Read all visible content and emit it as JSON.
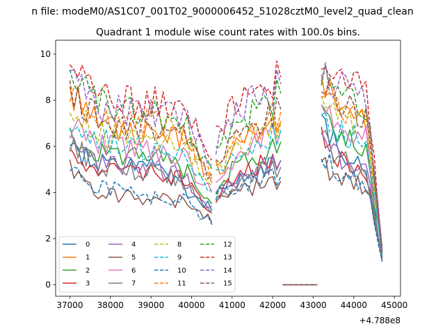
{
  "header": {
    "suptitle": "n file: modeM0/AS1C07_001T02_9000006452_51028cztM0_level2_quad_clean",
    "title": "Quadrant 1 module wise count rates with 100.0s bins.",
    "offset_label": "+4.788e8"
  },
  "chart_data": {
    "type": "line",
    "title": "Quadrant 1 module wise count rates with 100.0s bins.",
    "xlabel": "",
    "ylabel": "",
    "x_offset": 478800000,
    "xlim": [
      36650,
      45150
    ],
    "ylim": [
      -0.5,
      10.6
    ],
    "xticks": [
      37000,
      38000,
      39000,
      40000,
      41000,
      42000,
      43000,
      44000,
      45000
    ],
    "yticks": [
      0,
      2,
      4,
      6,
      8,
      10
    ],
    "grid": false,
    "legend": {
      "placement": "lower-left",
      "columns": 4
    },
    "x_ranges": [
      [
        37000,
        40500,
        100
      ],
      [
        40600,
        42200,
        100
      ],
      [
        42250,
        43100,
        50
      ],
      [
        43200,
        44700,
        100
      ]
    ],
    "series": [
      {
        "name": "0",
        "color": "#1f77b4",
        "dash": "solid",
        "segs": [
          [
            5.9,
            5.4,
            5.2,
            5.2,
            4.3,
            3.2
          ],
          [
            3.8,
            4.6,
            5.0,
            5.4
          ],
          [
            0,
            0
          ],
          [
            7.1,
            6.0,
            5.4,
            4.7,
            1.2
          ]
        ]
      },
      {
        "name": "1",
        "color": "#ff7f0e",
        "dash": "solid",
        "segs": [
          [
            8.3,
            7.4,
            6.6,
            6.7,
            6.4,
            4.4
          ],
          [
            5.0,
            5.9,
            6.6,
            7.1
          ],
          [
            0,
            0
          ],
          [
            8.8,
            7.8,
            7.4,
            7.0,
            1.3
          ]
        ]
      },
      {
        "name": "2",
        "color": "#2ca02c",
        "dash": "solid",
        "segs": [
          [
            6.5,
            5.8,
            5.5,
            5.7,
            5.0,
            3.5
          ],
          [
            4.2,
            5.2,
            5.6,
            6.2
          ],
          [
            0,
            0
          ],
          [
            7.6,
            6.6,
            6.2,
            5.8,
            1.3
          ]
        ]
      },
      {
        "name": "3",
        "color": "#d62728",
        "dash": "solid",
        "segs": [
          [
            5.6,
            5.1,
            4.9,
            4.8,
            4.5,
            3.1
          ],
          [
            3.6,
            4.8,
            5.2,
            5.4
          ],
          [
            0,
            0
          ],
          [
            6.7,
            5.6,
            5.1,
            4.7,
            1.1
          ]
        ]
      },
      {
        "name": "4",
        "color": "#9467bd",
        "dash": "solid",
        "segs": [
          [
            6.0,
            5.3,
            5.2,
            5.1,
            4.6,
            3.4
          ],
          [
            3.9,
            4.6,
            5.0,
            5.4
          ],
          [
            0,
            0
          ],
          [
            6.5,
            5.6,
            5.2,
            4.9,
            1.2
          ]
        ]
      },
      {
        "name": "5",
        "color": "#8c564b",
        "dash": "solid",
        "segs": [
          [
            5.0,
            4.0,
            3.8,
            3.7,
            3.6,
            2.7
          ],
          [
            3.5,
            4.0,
            4.2,
            4.5
          ],
          [
            0,
            0
          ],
          [
            5.3,
            4.6,
            4.4,
            4.2,
            1.0
          ]
        ]
      },
      {
        "name": "6",
        "color": "#e377c2",
        "dash": "solid",
        "segs": [
          [
            6.9,
            6.1,
            5.9,
            5.8,
            5.5,
            4.0
          ],
          [
            4.7,
            5.7,
            6.2,
            6.7
          ],
          [
            0,
            0
          ],
          [
            7.8,
            6.9,
            6.6,
            6.4,
            1.4
          ]
        ]
      },
      {
        "name": "7",
        "color": "#7f7f7f",
        "dash": "solid",
        "segs": [
          [
            6.2,
            5.1,
            5.0,
            4.9,
            4.4,
            3.1
          ],
          [
            3.7,
            4.5,
            4.8,
            5.1
          ],
          [
            0,
            0
          ],
          [
            6.6,
            5.6,
            5.1,
            4.8,
            1.1
          ]
        ]
      },
      {
        "name": "8",
        "color": "#bcbd22",
        "dash": "dashed",
        "segs": [
          [
            7.9,
            6.6,
            6.3,
            6.2,
            6.0,
            4.3
          ],
          [
            5.0,
            6.0,
            6.4,
            7.0
          ],
          [
            0,
            0
          ],
          [
            8.3,
            7.4,
            7.1,
            6.9,
            1.4
          ]
        ]
      },
      {
        "name": "9",
        "color": "#17becf",
        "dash": "dashed",
        "segs": [
          [
            7.0,
            6.3,
            6.0,
            5.8,
            5.6,
            4.1
          ],
          [
            4.6,
            5.6,
            6.0,
            6.7
          ],
          [
            0,
            0
          ],
          [
            7.5,
            6.6,
            6.4,
            6.2,
            1.3
          ]
        ]
      },
      {
        "name": "10",
        "color": "#1f77b4",
        "dash": "dashed",
        "segs": [
          [
            5.1,
            4.2,
            4.0,
            3.8,
            3.7,
            2.6
          ],
          [
            3.9,
            4.3,
            4.5,
            4.7
          ],
          [
            0,
            0
          ],
          [
            5.6,
            4.9,
            4.6,
            4.4,
            1.0
          ]
        ]
      },
      {
        "name": "11",
        "color": "#ff7f0e",
        "dash": "dashed",
        "segs": [
          [
            8.1,
            7.2,
            7.0,
            7.0,
            6.6,
            4.6
          ],
          [
            5.3,
            6.5,
            6.9,
            7.5
          ],
          [
            0,
            0
          ],
          [
            8.4,
            7.5,
            7.3,
            7.1,
            1.4
          ]
        ]
      },
      {
        "name": "12",
        "color": "#2ca02c",
        "dash": "dashed",
        "segs": [
          [
            9.4,
            7.9,
            7.6,
            7.4,
            7.1,
            5.0
          ],
          [
            5.8,
            7.2,
            7.6,
            8.3
          ],
          [
            0,
            0
          ],
          [
            9.0,
            8.2,
            7.9,
            7.7,
            1.5
          ]
        ]
      },
      {
        "name": "13",
        "color": "#d62728",
        "dash": "dashed",
        "segs": [
          [
            9.5,
            8.6,
            8.0,
            7.9,
            7.7,
            5.4
          ],
          [
            6.4,
            8.0,
            8.6,
            9.0
          ],
          [
            0,
            0
          ],
          [
            9.8,
            9.0,
            8.8,
            8.6,
            1.6
          ]
        ]
      },
      {
        "name": "14",
        "color": "#9467bd",
        "dash": "dashed",
        "segs": [
          [
            9.1,
            7.8,
            7.5,
            7.5,
            7.3,
            5.2
          ],
          [
            6.0,
            7.6,
            8.1,
            8.7
          ],
          [
            0,
            0
          ],
          [
            9.3,
            8.6,
            8.4,
            8.2,
            1.5
          ]
        ]
      },
      {
        "name": "15",
        "color": "#8c564b",
        "dash": "dashed",
        "segs": [
          [
            8.6,
            7.1,
            6.7,
            6.8,
            6.4,
            4.8
          ],
          [
            5.5,
            6.8,
            7.1,
            7.6
          ],
          [
            0,
            0
          ],
          [
            8.9,
            7.9,
            7.6,
            7.4,
            1.4
          ]
        ]
      }
    ]
  }
}
